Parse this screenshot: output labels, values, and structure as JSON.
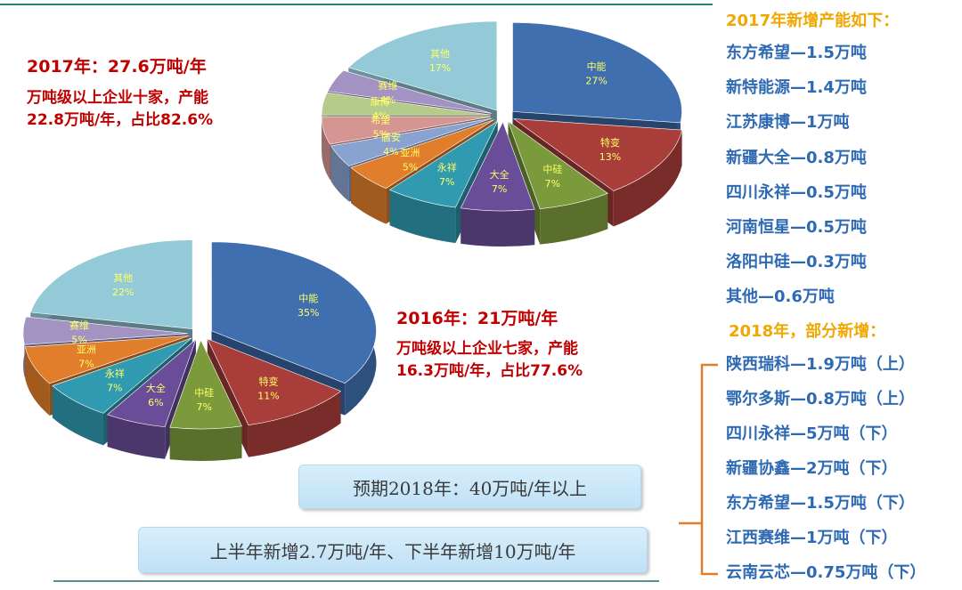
{
  "left_texts": {
    "y2017_title": "2017年：27.6万吨/年",
    "y2017_line1": "万吨级以上企业十家，产能",
    "y2017_line2": "22.8万吨/年，占比82.6%",
    "y2016_title": "2016年：21万吨/年",
    "y2016_line1": "万吨级以上企业七家，产能",
    "y2016_line2": "16.3万吨/年，占比77.6%"
  },
  "right_panel": {
    "header_2017": "2017年新增产能如下：",
    "items_2017": [
      "东方希望—1.5万吨",
      "新特能源—1.4万吨",
      "江苏康博—1万吨",
      "新疆大全—0.8万吨",
      "四川永祥—0.5万吨",
      "河南恒星—0.5万吨",
      "洛阳中硅—0.3万吨",
      "其他—0.6万吨"
    ],
    "header_2018": "2018年，部分新增：",
    "items_2018": [
      "陕西瑞科—1.9万吨（上）",
      "鄂尔多斯—0.8万吨（上）",
      "四川永祥—5万吨（下）",
      "新疆协鑫—2万吨（下）",
      "东方希望—1.5万吨（下）",
      "江西赛维—1万吨（下）",
      "云南云芯—0.75万吨（下）"
    ]
  },
  "boxes": {
    "forecast": "预期2018年：40万吨/年以上",
    "halves": "上半年新增2.7万吨/年、下半年新增10万吨/年"
  },
  "colors": {
    "中能": "#3f6fae",
    "特变": "#a83d3a",
    "中硅": "#7b9a3c",
    "大全": "#6a4d98",
    "永祥": "#2f9ab0",
    "亚洲": "#e07e2b",
    "盾安": "#8aa2cf",
    "希望": "#d49593",
    "康博": "#b5cb8a",
    "赛维": "#a393c2",
    "其他": "#94c9d8"
  },
  "chart_data": [
    {
      "type": "pie",
      "title": "",
      "slices": [
        {
          "label": "中能",
          "pct": "27%",
          "value": 27
        },
        {
          "label": "特变",
          "pct": "13%",
          "value": 13
        },
        {
          "label": "中硅",
          "pct": "7%",
          "value": 7
        },
        {
          "label": "大全",
          "pct": "7%",
          "value": 7
        },
        {
          "label": "永祥",
          "pct": "7%",
          "value": 7
        },
        {
          "label": "亚洲",
          "pct": "5%",
          "value": 5
        },
        {
          "label": "盾安",
          "pct": "4%",
          "value": 4
        },
        {
          "label": "希望",
          "pct": "5%",
          "value": 5
        },
        {
          "label": "康博",
          "pct": "4%",
          "value": 4
        },
        {
          "label": "赛维",
          "pct": "4%",
          "value": 4
        },
        {
          "label": "其他",
          "pct": "17%",
          "value": 17
        }
      ]
    },
    {
      "type": "pie",
      "title": "",
      "slices": [
        {
          "label": "中能",
          "pct": "35%",
          "value": 35
        },
        {
          "label": "特变",
          "pct": "11%",
          "value": 11
        },
        {
          "label": "中硅",
          "pct": "7%",
          "value": 7
        },
        {
          "label": "大全",
          "pct": "6%",
          "value": 6
        },
        {
          "label": "永祥",
          "pct": "7%",
          "value": 7
        },
        {
          "label": "亚洲",
          "pct": "7%",
          "value": 7
        },
        {
          "label": "赛维",
          "pct": "5%",
          "value": 5
        },
        {
          "label": "其他",
          "pct": "22%",
          "value": 22
        }
      ]
    }
  ]
}
